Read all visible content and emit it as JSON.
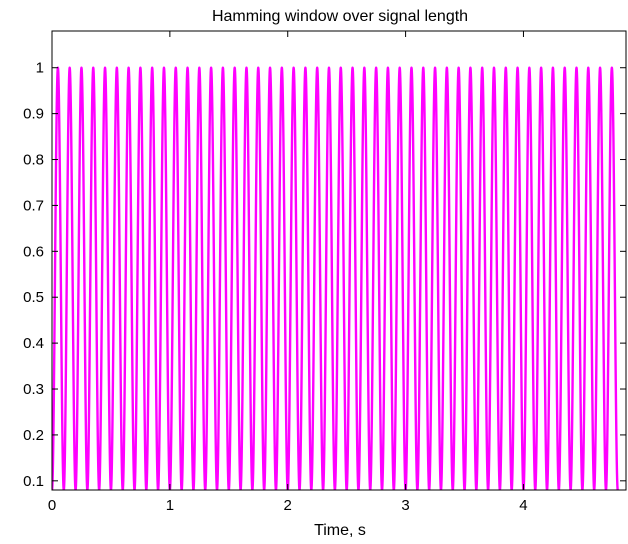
{
  "chart_data": {
    "type": "line",
    "title": "Hamming window over signal length",
    "xlabel": "Time, s",
    "ylabel": "",
    "xlim": [
      0,
      4.87
    ],
    "ylim": [
      0.08,
      1.08
    ],
    "xticks": [
      0,
      1,
      2,
      3,
      4
    ],
    "xtick_labels": [
      "0",
      "1",
      "2",
      "3",
      "4"
    ],
    "yticks": [
      0.1,
      0.2,
      0.3,
      0.4,
      0.5,
      0.6,
      0.7,
      0.8,
      0.9,
      1
    ],
    "ytick_labels": [
      "0.1",
      "0.2",
      "0.3",
      "0.4",
      "0.5",
      "0.6",
      "0.7",
      "0.8",
      "0.9",
      "1"
    ],
    "grid": false,
    "legend": "none",
    "series": [
      {
        "color": "#ff00ff",
        "window": "hamming",
        "window_length_s": 0.1,
        "window_count": 48,
        "min": 0.08,
        "max": 1.0
      }
    ]
  }
}
